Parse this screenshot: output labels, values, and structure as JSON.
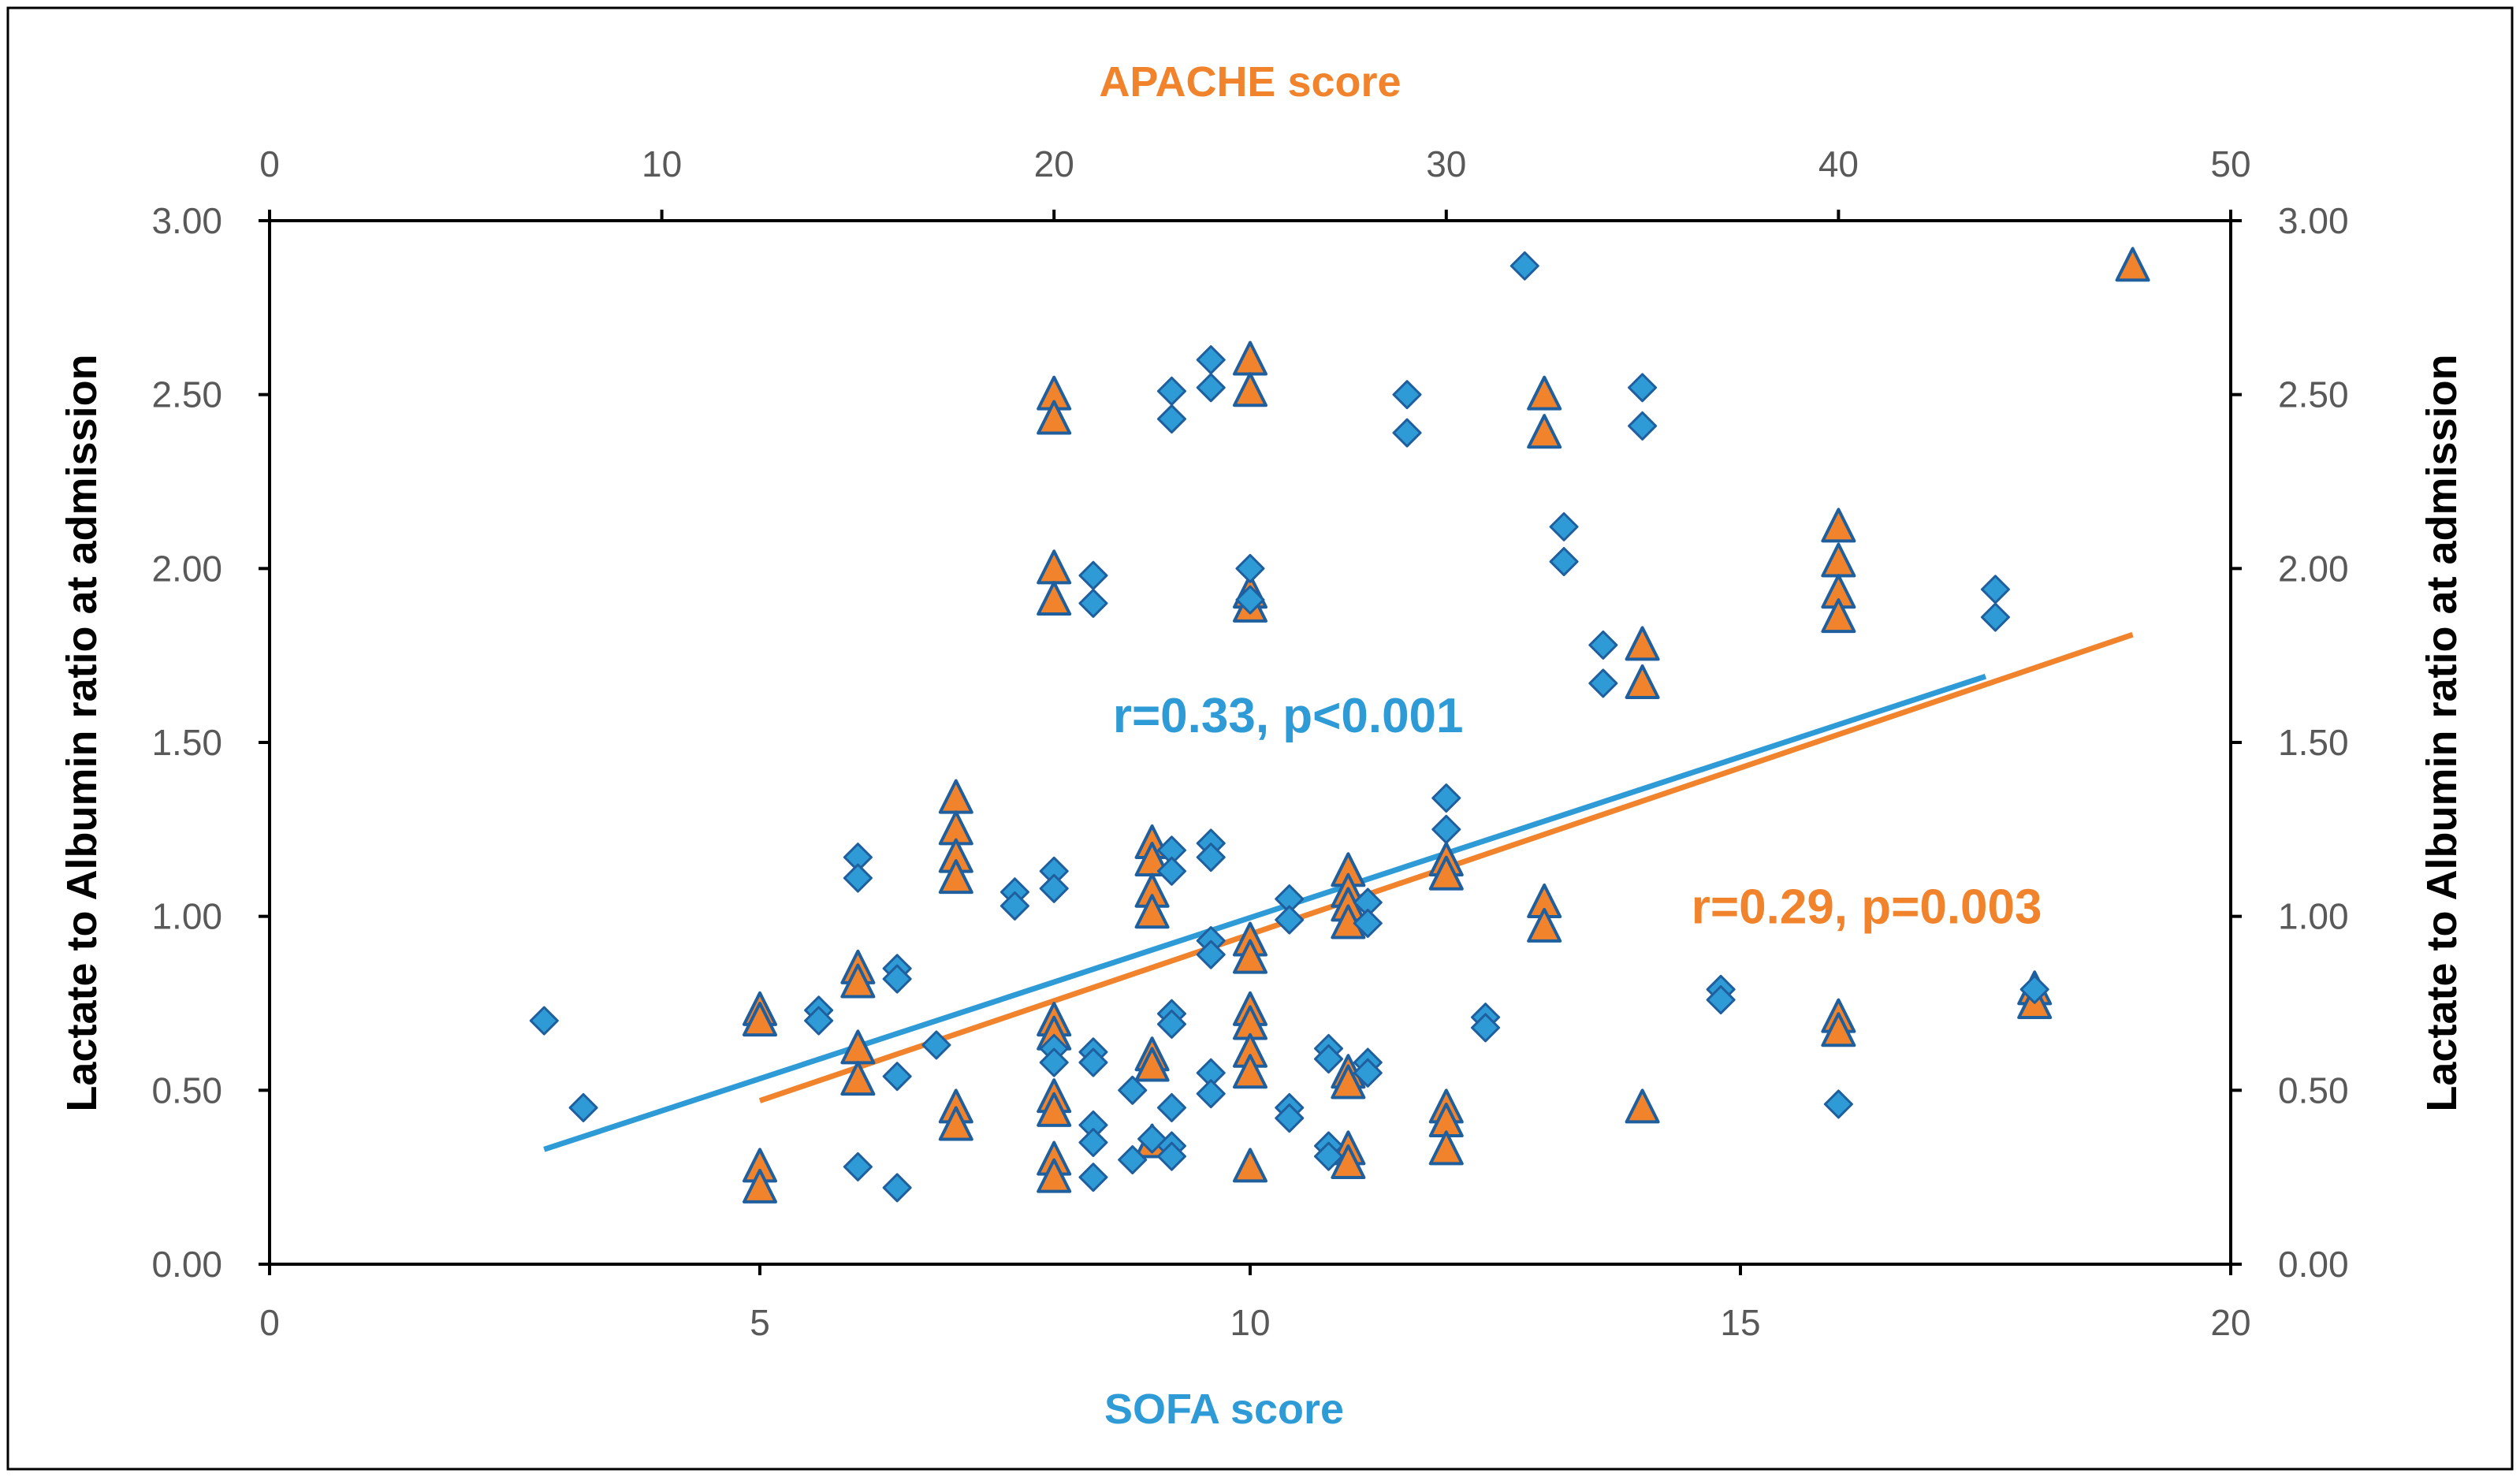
{
  "colors": {
    "sofa": "#2E9BD6",
    "sofa_edge": "#1F5F9E",
    "apache": "#F0832C",
    "axis": "#000000",
    "tick_text": "#595959"
  },
  "chart_data": {
    "type": "scatter",
    "title": "",
    "xlabel": "SOFA score",
    "x2label": "APACHE score",
    "ylabel": "Lactate to Albumin ratio at admission",
    "y2label": "Lactate to Albumin ratio at admission",
    "grid": false,
    "legend": "none",
    "xlim": [
      0,
      20
    ],
    "x2lim": [
      0,
      50
    ],
    "ylim": [
      0,
      3
    ],
    "xticks": [
      "0",
      "5",
      "10",
      "15",
      "20"
    ],
    "x2ticks": [
      "0",
      "10",
      "20",
      "30",
      "40",
      "50"
    ],
    "yticks": [
      "0.00",
      "0.50",
      "1.00",
      "1.50",
      "2.00",
      "2.50",
      "3.00"
    ],
    "series": [
      {
        "name": "SOFA score",
        "marker": "diamond",
        "axis": "bottom",
        "points": [
          [
            2.8,
            0.7
          ],
          [
            3.2,
            0.45
          ],
          [
            5.6,
            0.73
          ],
          [
            5.6,
            0.7
          ],
          [
            6.0,
            0.28
          ],
          [
            6.0,
            1.17
          ],
          [
            6.0,
            1.11
          ],
          [
            6.4,
            0.85
          ],
          [
            6.4,
            0.82
          ],
          [
            6.4,
            0.54
          ],
          [
            6.4,
            0.22
          ],
          [
            6.8,
            0.63
          ],
          [
            7.6,
            1.07
          ],
          [
            7.6,
            1.03
          ],
          [
            8.0,
            1.13
          ],
          [
            8.0,
            1.08
          ],
          [
            8.0,
            0.62
          ],
          [
            8.0,
            0.58
          ],
          [
            8.4,
            1.98
          ],
          [
            8.4,
            1.9
          ],
          [
            8.4,
            0.61
          ],
          [
            8.4,
            0.58
          ],
          [
            8.4,
            0.4
          ],
          [
            8.4,
            0.35
          ],
          [
            8.4,
            0.25
          ],
          [
            8.8,
            0.5
          ],
          [
            8.8,
            0.3
          ],
          [
            9.0,
            0.36
          ],
          [
            9.2,
            2.51
          ],
          [
            9.2,
            2.43
          ],
          [
            9.2,
            1.19
          ],
          [
            9.2,
            1.13
          ],
          [
            9.2,
            0.72
          ],
          [
            9.2,
            0.69
          ],
          [
            9.2,
            0.45
          ],
          [
            9.2,
            0.34
          ],
          [
            9.2,
            0.31
          ],
          [
            9.6,
            2.6
          ],
          [
            9.6,
            2.52
          ],
          [
            9.6,
            1.21
          ],
          [
            9.6,
            1.17
          ],
          [
            9.6,
            0.93
          ],
          [
            9.6,
            0.89
          ],
          [
            9.6,
            0.55
          ],
          [
            9.6,
            0.49
          ],
          [
            10.0,
            2.0
          ],
          [
            10.0,
            1.91
          ],
          [
            10.4,
            1.05
          ],
          [
            10.4,
            0.99
          ],
          [
            10.4,
            0.45
          ],
          [
            10.4,
            0.42
          ],
          [
            10.8,
            0.62
          ],
          [
            10.8,
            0.59
          ],
          [
            10.8,
            0.34
          ],
          [
            10.8,
            0.31
          ],
          [
            11.2,
            1.04
          ],
          [
            11.2,
            0.98
          ],
          [
            11.2,
            0.58
          ],
          [
            11.2,
            0.55
          ],
          [
            11.6,
            2.5
          ],
          [
            11.6,
            2.39
          ],
          [
            12.0,
            1.34
          ],
          [
            12.0,
            1.25
          ],
          [
            12.4,
            0.71
          ],
          [
            12.4,
            0.68
          ],
          [
            12.8,
            2.87
          ],
          [
            13.2,
            2.12
          ],
          [
            13.2,
            2.02
          ],
          [
            13.6,
            1.78
          ],
          [
            13.6,
            1.67
          ],
          [
            14.0,
            2.52
          ],
          [
            14.0,
            2.41
          ],
          [
            14.8,
            0.79
          ],
          [
            14.8,
            0.76
          ],
          [
            16.0,
            0.46
          ],
          [
            17.6,
            1.94
          ],
          [
            17.6,
            1.86
          ],
          [
            18.0,
            0.79
          ]
        ]
      },
      {
        "name": "APACHE score",
        "marker": "triangle",
        "axis": "top",
        "points": [
          [
            12.5,
            0.73
          ],
          [
            12.5,
            0.7
          ],
          [
            12.5,
            0.28
          ],
          [
            12.5,
            0.22
          ],
          [
            15,
            0.85
          ],
          [
            15,
            0.81
          ],
          [
            15,
            0.62
          ],
          [
            15,
            0.53
          ],
          [
            17.5,
            1.34
          ],
          [
            17.5,
            1.25
          ],
          [
            17.5,
            1.17
          ],
          [
            17.5,
            1.11
          ],
          [
            17.5,
            0.45
          ],
          [
            17.5,
            0.4
          ],
          [
            20,
            2.5
          ],
          [
            20,
            2.43
          ],
          [
            20,
            2.0
          ],
          [
            20,
            1.91
          ],
          [
            20,
            0.7
          ],
          [
            20,
            0.66
          ],
          [
            20,
            0.48
          ],
          [
            20,
            0.44
          ],
          [
            20,
            0.3
          ],
          [
            20,
            0.25
          ],
          [
            22.5,
            1.21
          ],
          [
            22.5,
            1.16
          ],
          [
            22.5,
            1.07
          ],
          [
            22.5,
            1.01
          ],
          [
            22.5,
            0.6
          ],
          [
            22.5,
            0.57
          ],
          [
            22.5,
            0.35
          ],
          [
            25,
            2.6
          ],
          [
            25,
            2.51
          ],
          [
            25,
            1.93
          ],
          [
            25,
            1.89
          ],
          [
            25,
            0.93
          ],
          [
            25,
            0.88
          ],
          [
            25,
            0.73
          ],
          [
            25,
            0.69
          ],
          [
            25,
            0.61
          ],
          [
            25,
            0.55
          ],
          [
            25,
            0.28
          ],
          [
            27.5,
            1.13
          ],
          [
            27.5,
            1.07
          ],
          [
            27.5,
            1.03
          ],
          [
            27.5,
            0.98
          ],
          [
            27.5,
            0.55
          ],
          [
            27.5,
            0.52
          ],
          [
            27.5,
            0.33
          ],
          [
            27.5,
            0.29
          ],
          [
            30,
            1.16
          ],
          [
            30,
            1.12
          ],
          [
            30,
            0.45
          ],
          [
            30,
            0.41
          ],
          [
            30,
            0.33
          ],
          [
            32.5,
            2.5
          ],
          [
            32.5,
            2.39
          ],
          [
            32.5,
            1.04
          ],
          [
            32.5,
            0.97
          ],
          [
            35,
            1.78
          ],
          [
            35,
            1.67
          ],
          [
            35,
            0.45
          ],
          [
            40,
            2.12
          ],
          [
            40,
            2.02
          ],
          [
            40,
            1.93
          ],
          [
            40,
            1.86
          ],
          [
            40,
            0.71
          ],
          [
            40,
            0.67
          ],
          [
            45,
            0.79
          ],
          [
            45,
            0.75
          ],
          [
            47.5,
            2.87
          ]
        ]
      }
    ],
    "trendlines": [
      {
        "name": "SOFA trend",
        "axis": "bottom",
        "x": [
          2.8,
          17.5
        ],
        "y": [
          0.33,
          1.69
        ]
      },
      {
        "name": "APACHE trend",
        "axis": "top",
        "x": [
          12.5,
          47.5
        ],
        "y": [
          0.47,
          1.81
        ]
      }
    ],
    "annotations": [
      {
        "name": "sofa-correlation",
        "text": "r=0.33, p<0.001",
        "series": "SOFA score",
        "x": 8.6,
        "y": 1.53
      },
      {
        "name": "apache-correlation",
        "text": "r=0.29, p=0.003",
        "series": "APACHE score",
        "x": 14.5,
        "y": 0.98
      }
    ]
  }
}
